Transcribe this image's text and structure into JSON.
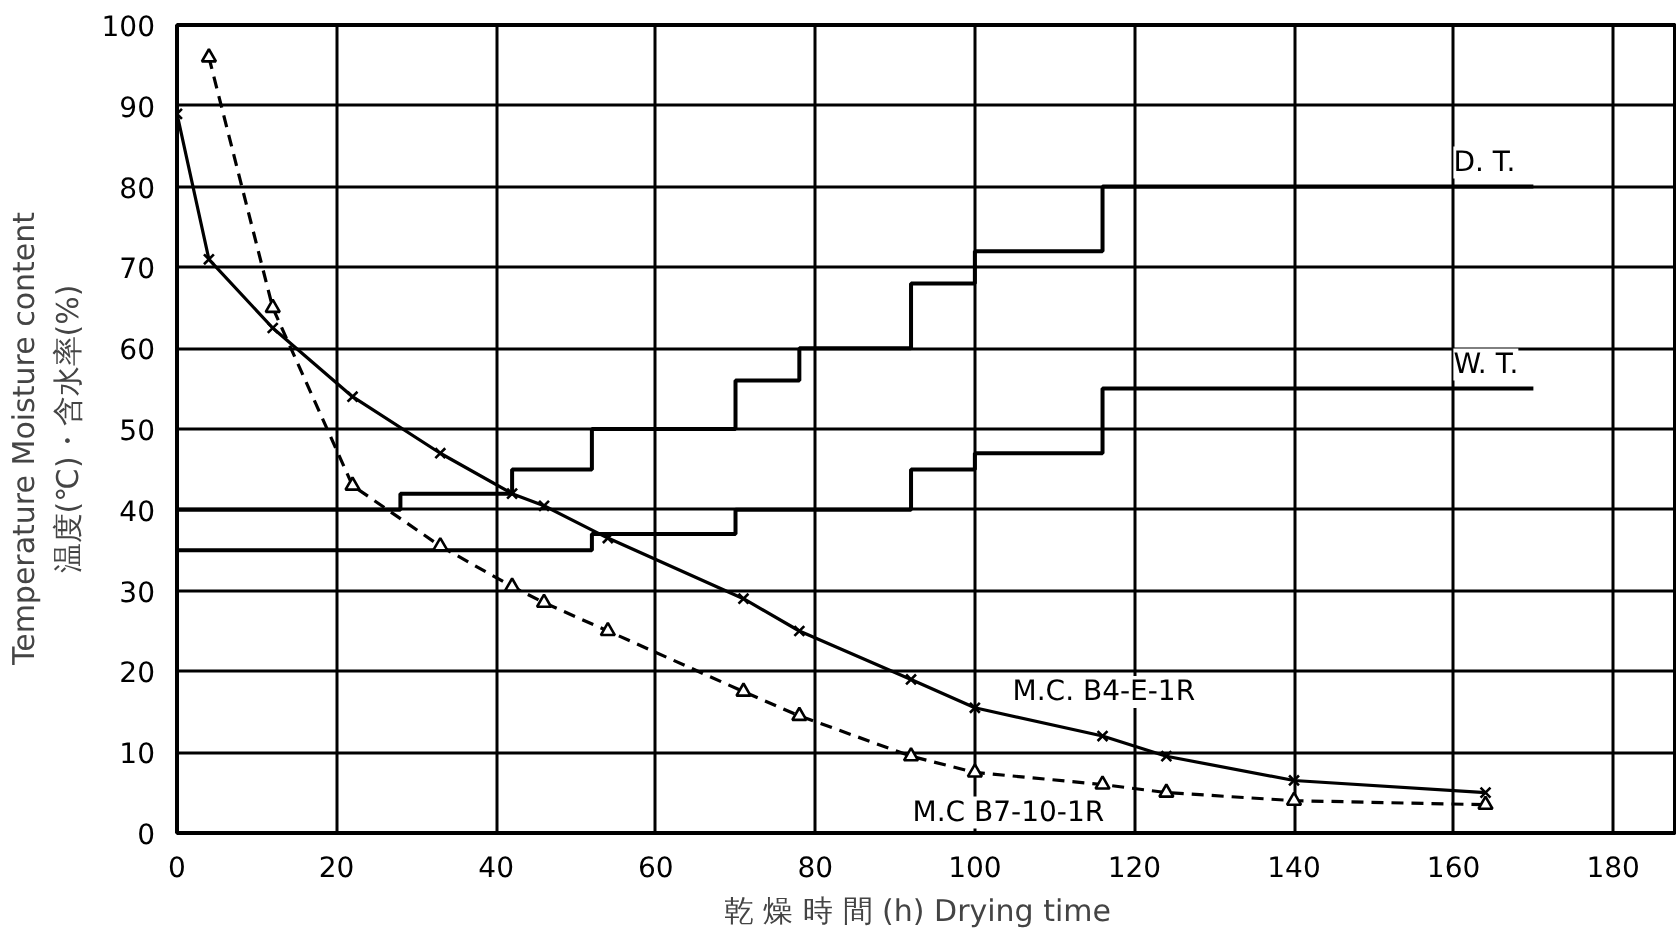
{
  "chart_data": {
    "type": "line",
    "xlabel": "乾 燥 時 間 (h)   Drying time",
    "ylabel": "Temperature   Moisture content\n温度(℃)・含水率(%)",
    "xlim": [
      0,
      188
    ],
    "ylim": [
      0,
      100
    ],
    "xticks": [
      0,
      20,
      40,
      60,
      80,
      100,
      120,
      140,
      160,
      180
    ],
    "yticks": [
      0,
      10,
      20,
      30,
      40,
      50,
      60,
      70,
      80,
      90,
      100
    ],
    "grid": true,
    "series": [
      {
        "name": "D. T.",
        "type": "step",
        "color": "#000000",
        "line_style": "solid",
        "marker": "none",
        "x": [
          0,
          28,
          42,
          52,
          70,
          78,
          92,
          100,
          116,
          170
        ],
        "values": [
          40,
          42,
          45,
          50,
          56,
          60,
          68,
          72,
          80,
          80
        ]
      },
      {
        "name": "W. T.",
        "type": "step",
        "color": "#000000",
        "line_style": "solid",
        "marker": "none",
        "x": [
          0,
          52,
          70,
          92,
          100,
          116,
          170
        ],
        "values": [
          35,
          37,
          40,
          45,
          47,
          55,
          55
        ]
      },
      {
        "name": "M.C. B4-E-1R",
        "color": "#000000",
        "line_style": "solid",
        "marker": "cross",
        "x": [
          0,
          4,
          12,
          22,
          33,
          42,
          46,
          54,
          71,
          78,
          92,
          100,
          116,
          124,
          140,
          164
        ],
        "values": [
          89,
          71,
          62.5,
          54,
          47,
          42,
          40.5,
          36.5,
          29,
          25,
          19,
          15.5,
          12,
          9.5,
          6.5,
          5
        ]
      },
      {
        "name": "M.C B7-10-1R",
        "color": "#000000",
        "line_style": "dashed",
        "marker": "triangle",
        "x": [
          4,
          12,
          22,
          33,
          42,
          46,
          54,
          71,
          78,
          92,
          100,
          116,
          124,
          140,
          164
        ],
        "values": [
          96,
          65,
          43,
          35.5,
          30.5,
          28.5,
          25,
          17.5,
          14.5,
          9.5,
          7.5,
          6,
          5,
          4,
          3.5
        ]
      }
    ]
  }
}
